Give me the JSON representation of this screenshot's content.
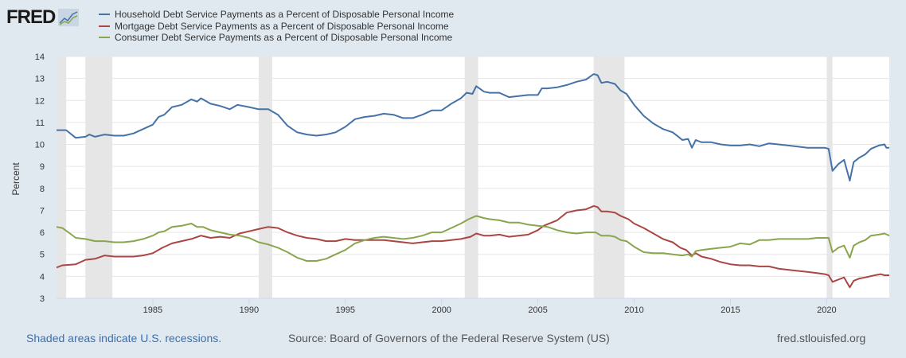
{
  "logo": {
    "text": "FRED"
  },
  "chart_data": {
    "type": "line",
    "title": "",
    "xlabel": "",
    "ylabel": "Percent",
    "xlim": [
      1980,
      2023.25
    ],
    "ylim": [
      3,
      14
    ],
    "yticks": [
      3,
      4,
      5,
      6,
      7,
      8,
      9,
      10,
      11,
      12,
      13,
      14
    ],
    "xticks": [
      1985,
      1990,
      1995,
      2000,
      2005,
      2010,
      2015,
      2020
    ],
    "grid": "horizontal",
    "legend_position": "top-left",
    "recessions": [
      [
        1980.0,
        1980.5
      ],
      [
        1981.5,
        1982.9
      ],
      [
        1990.5,
        1991.2
      ],
      [
        2001.2,
        2001.9
      ],
      [
        2007.9,
        2009.5
      ],
      [
        2020.0,
        2020.3
      ]
    ],
    "series": [
      {
        "name": "Household Debt Service Payments as a Percent of Disposable Personal Income",
        "color": "#4572a7",
        "x": [
          1980,
          1980.5,
          1981,
          1981.5,
          1981.7,
          1982,
          1982.5,
          1983,
          1983.5,
          1984,
          1984.5,
          1985,
          1985.3,
          1985.6,
          1986,
          1986.5,
          1987,
          1987.3,
          1987.5,
          1988,
          1988.5,
          1989,
          1989.4,
          1990,
          1990.5,
          1991,
          1991.5,
          1992,
          1992.5,
          1993,
          1993.5,
          1994,
          1994.5,
          1995,
          1995.5,
          1996,
          1996.5,
          1997,
          1997.5,
          1998,
          1998.5,
          1999,
          1999.5,
          2000,
          2000.5,
          2001,
          2001.3,
          2001.6,
          2001.8,
          2002.2,
          2002.5,
          2003,
          2003.5,
          2004,
          2004.5,
          2005,
          2005.2,
          2005.5,
          2006,
          2006.5,
          2007,
          2007.5,
          2007.9,
          2008.1,
          2008.3,
          2008.6,
          2009,
          2009.3,
          2009.6,
          2010,
          2010.5,
          2011,
          2011.5,
          2012,
          2012.3,
          2012.5,
          2012.8,
          2013,
          2013.2,
          2013.5,
          2014,
          2014.5,
          2015,
          2015.5,
          2016,
          2016.5,
          2017,
          2017.5,
          2018,
          2018.5,
          2019,
          2019.5,
          2019.9,
          2020.1,
          2020.3,
          2020.6,
          2020.9,
          2021.2,
          2021.4,
          2021.7,
          2022,
          2022.3,
          2022.7,
          2023,
          2023.1,
          2023.25
        ],
        "y": [
          10.65,
          10.65,
          10.3,
          10.35,
          10.45,
          10.35,
          10.45,
          10.4,
          10.4,
          10.5,
          10.7,
          10.9,
          11.25,
          11.35,
          11.7,
          11.8,
          12.05,
          11.95,
          12.1,
          11.85,
          11.75,
          11.6,
          11.8,
          11.7,
          11.6,
          11.6,
          11.35,
          10.85,
          10.55,
          10.45,
          10.4,
          10.45,
          10.55,
          10.8,
          11.15,
          11.25,
          11.3,
          11.4,
          11.35,
          11.2,
          11.2,
          11.35,
          11.55,
          11.55,
          11.85,
          12.1,
          12.35,
          12.3,
          12.65,
          12.4,
          12.35,
          12.35,
          12.15,
          12.2,
          12.25,
          12.25,
          12.55,
          12.55,
          12.6,
          12.7,
          12.85,
          12.95,
          13.2,
          13.15,
          12.8,
          12.85,
          12.75,
          12.45,
          12.3,
          11.8,
          11.3,
          10.95,
          10.7,
          10.55,
          10.35,
          10.2,
          10.25,
          9.85,
          10.2,
          10.1,
          10.1,
          10.0,
          9.95,
          9.95,
          10.0,
          9.92,
          10.05,
          10.0,
          9.95,
          9.9,
          9.85,
          9.85,
          9.85,
          9.8,
          8.8,
          9.1,
          9.3,
          8.35,
          9.2,
          9.4,
          9.55,
          9.8,
          9.95,
          10.0,
          9.85,
          9.85
        ]
      },
      {
        "name": "Mortgage Debt Service Payments as a Percent of Disposable Personal Income",
        "color": "#aa4643",
        "x": [
          1980,
          1980.3,
          1981,
          1981.5,
          1982,
          1982.5,
          1983,
          1983.5,
          1984,
          1984.5,
          1985,
          1985.5,
          1986,
          1986.5,
          1987,
          1987.5,
          1988,
          1988.5,
          1989,
          1989.5,
          1990,
          1990.5,
          1991,
          1991.5,
          1992,
          1992.5,
          1993,
          1993.5,
          1994,
          1994.5,
          1995,
          1995.5,
          1996,
          1996.5,
          1997,
          1997.5,
          1998,
          1998.5,
          1999,
          1999.5,
          2000,
          2000.5,
          2001,
          2001.5,
          2001.8,
          2002.2,
          2002.5,
          2003,
          2003.5,
          2004,
          2004.5,
          2005,
          2005.3,
          2006,
          2006.5,
          2007,
          2007.5,
          2007.9,
          2008.1,
          2008.3,
          2008.6,
          2009,
          2009.3,
          2009.7,
          2010,
          2010.5,
          2011,
          2011.5,
          2012,
          2012.4,
          2012.7,
          2013,
          2013.2,
          2013.5,
          2014,
          2014.5,
          2015,
          2015.5,
          2016,
          2016.5,
          2017,
          2017.5,
          2018,
          2018.5,
          2019,
          2019.5,
          2019.9,
          2020.1,
          2020.3,
          2020.6,
          2020.9,
          2021.2,
          2021.4,
          2021.7,
          2022,
          2022.5,
          2022.8,
          2023,
          2023.25
        ],
        "y": [
          4.4,
          4.5,
          4.55,
          4.75,
          4.8,
          4.95,
          4.9,
          4.9,
          4.9,
          4.95,
          5.05,
          5.3,
          5.5,
          5.6,
          5.7,
          5.85,
          5.75,
          5.8,
          5.75,
          5.95,
          6.05,
          6.15,
          6.25,
          6.2,
          6.0,
          5.85,
          5.75,
          5.7,
          5.6,
          5.6,
          5.7,
          5.65,
          5.65,
          5.65,
          5.65,
          5.6,
          5.55,
          5.5,
          5.55,
          5.6,
          5.6,
          5.65,
          5.7,
          5.8,
          5.95,
          5.85,
          5.85,
          5.9,
          5.8,
          5.85,
          5.9,
          6.1,
          6.3,
          6.55,
          6.9,
          7.0,
          7.05,
          7.2,
          7.15,
          6.95,
          6.95,
          6.9,
          6.75,
          6.6,
          6.4,
          6.2,
          5.95,
          5.7,
          5.55,
          5.3,
          5.2,
          4.95,
          5.05,
          4.9,
          4.8,
          4.65,
          4.55,
          4.5,
          4.5,
          4.45,
          4.45,
          4.35,
          4.3,
          4.25,
          4.2,
          4.15,
          4.1,
          4.05,
          3.75,
          3.85,
          3.95,
          3.5,
          3.8,
          3.9,
          3.95,
          4.05,
          4.1,
          4.05,
          4.05
        ]
      },
      {
        "name": "Consumer Debt Service Payments as a Percent of Disposable Personal Income",
        "color": "#89a54e",
        "x": [
          1980,
          1980.3,
          1980.7,
          1981,
          1981.5,
          1982,
          1982.5,
          1983,
          1983.5,
          1984,
          1984.5,
          1985,
          1985.3,
          1985.6,
          1986,
          1986.5,
          1987,
          1987.3,
          1987.6,
          1988,
          1988.5,
          1989,
          1989.5,
          1990,
          1990.5,
          1991,
          1991.5,
          1992,
          1992.5,
          1993,
          1993.5,
          1994,
          1994.5,
          1995,
          1995.5,
          1996,
          1996.5,
          1997,
          1997.5,
          1998,
          1998.5,
          1999,
          1999.5,
          2000,
          2000.5,
          2001,
          2001.4,
          2001.8,
          2002.2,
          2002.5,
          2003,
          2003.5,
          2004,
          2004.5,
          2005,
          2005.5,
          2006,
          2006.5,
          2007,
          2007.5,
          2008,
          2008.3,
          2008.7,
          2009,
          2009.3,
          2009.6,
          2010,
          2010.5,
          2011,
          2011.5,
          2012,
          2012.5,
          2012.8,
          2013,
          2013.2,
          2013.5,
          2014,
          2014.5,
          2015,
          2015.5,
          2016,
          2016.5,
          2017,
          2017.5,
          2018,
          2018.5,
          2019,
          2019.5,
          2019.9,
          2020.1,
          2020.3,
          2020.6,
          2020.9,
          2021.2,
          2021.4,
          2021.7,
          2022,
          2022.3,
          2022.7,
          2023,
          2023.25
        ],
        "y": [
          6.25,
          6.2,
          5.95,
          5.75,
          5.7,
          5.6,
          5.6,
          5.55,
          5.55,
          5.6,
          5.7,
          5.85,
          6.0,
          6.05,
          6.25,
          6.3,
          6.4,
          6.25,
          6.25,
          6.1,
          6.0,
          5.9,
          5.85,
          5.75,
          5.55,
          5.45,
          5.3,
          5.1,
          4.85,
          4.7,
          4.7,
          4.8,
          5.0,
          5.2,
          5.5,
          5.65,
          5.75,
          5.8,
          5.75,
          5.7,
          5.75,
          5.85,
          6.0,
          6.0,
          6.2,
          6.4,
          6.6,
          6.75,
          6.65,
          6.6,
          6.55,
          6.45,
          6.45,
          6.35,
          6.3,
          6.25,
          6.1,
          6.0,
          5.95,
          6.0,
          6.0,
          5.85,
          5.85,
          5.8,
          5.65,
          5.6,
          5.35,
          5.1,
          5.05,
          5.05,
          5.0,
          4.95,
          5.0,
          4.9,
          5.15,
          5.2,
          5.25,
          5.3,
          5.35,
          5.5,
          5.45,
          5.65,
          5.65,
          5.7,
          5.7,
          5.7,
          5.7,
          5.75,
          5.75,
          5.75,
          5.1,
          5.3,
          5.4,
          4.85,
          5.4,
          5.55,
          5.65,
          5.85,
          5.9,
          5.95,
          5.85
        ]
      }
    ]
  },
  "footer": {
    "recession_note": "Shaded areas indicate U.S. recessions.",
    "source": "Source: Board of Governors of the Federal Reserve System (US)",
    "site": "fred.stlouisfed.org"
  }
}
